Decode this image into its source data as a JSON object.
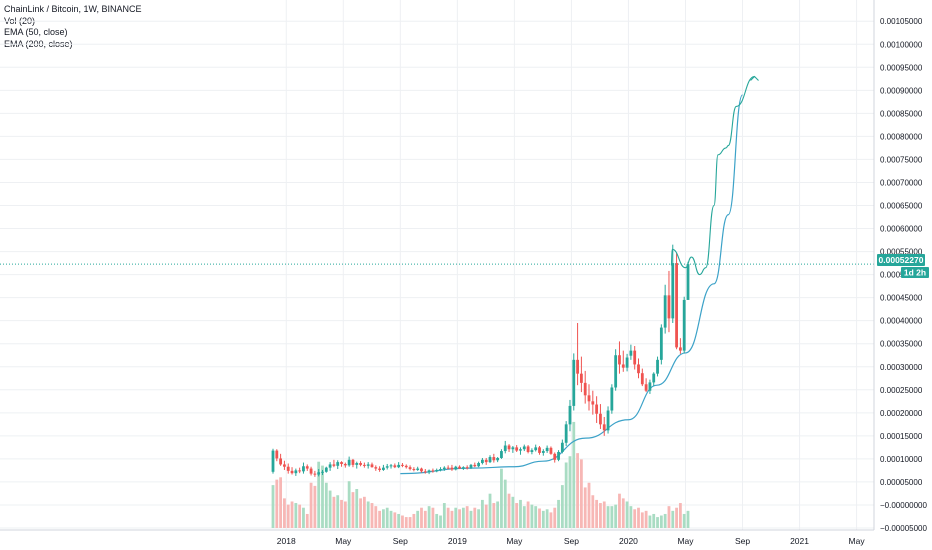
{
  "legend": {
    "title": "ChainLink / Bitcoin, 1W, BINANCE",
    "vol": "Vol (20)",
    "ema50": "EMA (50, close)",
    "ema200": "EMA (200, close)"
  },
  "price_badge": {
    "value": "0.00052270",
    "countdown": "1d 2h"
  },
  "colors": {
    "up": "#26a69a",
    "down": "#ef5350",
    "vol_up": "#a9dcc3",
    "vol_down": "#f7b7b5",
    "ema": "#3ca2c8",
    "projection": "#26a69a",
    "grid": "#eef0f3",
    "badge": "#26a69a"
  },
  "chart_data": {
    "type": "candlestick",
    "symbol": "ChainLink / Bitcoin, 1W, BINANCE",
    "x_axis": {
      "ticks": [
        "2018",
        "May",
        "Sep",
        "2019",
        "May",
        "Sep",
        "2020",
        "May",
        "Sep",
        "2021",
        "May"
      ],
      "range": [
        "2017-10",
        "2021-07"
      ]
    },
    "y_axis": {
      "ticks": [
        "−0.00005000",
        "−0.00000000",
        "0.00005000",
        "0.00010000",
        "0.00015000",
        "0.00020000",
        "0.00025000",
        "0.00030000",
        "0.00035000",
        "0.00040000",
        "0.00045000",
        "0.00050000",
        "0.00055000",
        "0.00060000",
        "0.00065000",
        "0.00070000",
        "0.00075000",
        "0.00080000",
        "0.00085000",
        "0.00090000",
        "0.00095000",
        "0.00100000",
        "0.00105000"
      ],
      "range": [
        -5e-05,
        0.00107
      ]
    },
    "last_price": 0.0005227,
    "ohlc_weekly": [
      [
        7.2e-05,
        0.000122,
        6.8e-05,
        0.000118
      ],
      [
        0.000118,
        0.000121,
        9.5e-05,
        0.000101
      ],
      [
        0.000101,
        0.000111,
        8.5e-05,
        8.8e-05
      ],
      [
        8.8e-05,
        9.6e-05,
        7.6e-05,
        8.3e-05
      ],
      [
        8.3e-05,
        9e-05,
        6.8e-05,
        7.4e-05
      ],
      [
        7.4e-05,
        8.2e-05,
        6.6e-05,
        6.9e-05
      ],
      [
        6.9e-05,
        7.9e-05,
        6.3e-05,
        7.5e-05
      ],
      [
        7.5e-05,
        8.1e-05,
        6.9e-05,
        7.3e-05
      ],
      [
        7.3e-05,
        9.2e-05,
        6.8e-05,
        8.4e-05
      ],
      [
        8.4e-05,
        8.8e-05,
        7.4e-05,
        7.9e-05
      ],
      [
        7.9e-05,
        8.3e-05,
        6.4e-05,
        6.8e-05
      ],
      [
        6.8e-05,
        7.4e-05,
        6.1e-05,
        6.6e-05
      ],
      [
        6.6e-05,
        7.8e-05,
        6.2e-05,
        7.1e-05
      ],
      [
        7.1e-05,
        7.6e-05,
        6.5e-05,
        7.2e-05
      ],
      [
        7.2e-05,
        8.3e-05,
        7e-05,
        8.1e-05
      ],
      [
        8.1e-05,
        9.3e-05,
        7.4e-05,
        8.8e-05
      ],
      [
        8.8e-05,
        9.8e-05,
        8.2e-05,
        8.5e-05
      ],
      [
        8.5e-05,
        9.7e-05,
        7.8e-05,
        9.3e-05
      ],
      [
        9.3e-05,
        9.5e-05,
        8.3e-05,
        8.9e-05
      ],
      [
        8.9e-05,
        9.2e-05,
        8.1e-05,
        8.6e-05
      ],
      [
        8.6e-05,
        0.000105,
        8.3e-05,
        9.8e-05
      ],
      [
        9.8e-05,
        0.0001,
        8.2e-05,
        8.7e-05
      ],
      [
        8.7e-05,
        9.4e-05,
        7.9e-05,
        9.1e-05
      ],
      [
        9.1e-05,
        9.5e-05,
        8.4e-05,
        8.7e-05
      ],
      [
        8.7e-05,
        9.2e-05,
        8.1e-05,
        8.5e-05
      ],
      [
        8.5e-05,
        9.3e-05,
        7.9e-05,
        8.8e-05
      ],
      [
        8.8e-05,
        9.2e-05,
        8.1e-05,
        8.2e-05
      ],
      [
        8.2e-05,
        8.6e-05,
        7.4e-05,
        7.9e-05
      ],
      [
        7.9e-05,
        8.4e-05,
        7.2e-05,
        7.6e-05
      ],
      [
        7.6e-05,
        8.7e-05,
        7.4e-05,
        8.1e-05
      ],
      [
        8.1e-05,
        8.9e-05,
        7.7e-05,
        8.4e-05
      ],
      [
        8.4e-05,
        8.9e-05,
        7.9e-05,
        8.6e-05
      ],
      [
        8.6e-05,
        9e-05,
        8e-05,
        8.2e-05
      ],
      [
        8.2e-05,
        9.3e-05,
        8e-05,
        8.7e-05
      ],
      [
        8.7e-05,
        9.1e-05,
        8.2e-05,
        8.5e-05
      ],
      [
        8.5e-05,
        8.8e-05,
        7.9e-05,
        8.2e-05
      ],
      [
        8.2e-05,
        8.6e-05,
        7.5e-05,
        7.8e-05
      ],
      [
        7.8e-05,
        8.2e-05,
        7.3e-05,
        7.6e-05
      ],
      [
        7.6e-05,
        8.3e-05,
        7.4e-05,
        7.9e-05
      ],
      [
        7.9e-05,
        8.1e-05,
        7e-05,
        7.3e-05
      ],
      [
        7.3e-05,
        7.8e-05,
        6.8e-05,
        7.1e-05
      ],
      [
        7.1e-05,
        7.7e-05,
        6.7e-05,
        7.5e-05
      ],
      [
        7.5e-05,
        7.9e-05,
        7e-05,
        7.3e-05
      ],
      [
        7.3e-05,
        7.9e-05,
        7.1e-05,
        7.6e-05
      ],
      [
        7.6e-05,
        8.2e-05,
        7.3e-05,
        7.8e-05
      ],
      [
        7.8e-05,
        8.4e-05,
        7.4e-05,
        8.1e-05
      ],
      [
        8.1e-05,
        8.6e-05,
        7.7e-05,
        8e-05
      ],
      [
        8.1e-05,
        8.7e-05,
        7.4e-05,
        7.7e-05
      ],
      [
        7.7e-05,
        8.5e-05,
        7.5e-05,
        8.3e-05
      ],
      [
        8.3e-05,
        8.6e-05,
        7.8e-05,
        7.9e-05
      ],
      [
        7.9e-05,
        8.4e-05,
        7.6e-05,
        8.2e-05
      ],
      [
        8.2e-05,
        8.6e-05,
        7.7e-05,
        8.1e-05
      ],
      [
        8.1e-05,
        8.9e-05,
        7.8e-05,
        8.7e-05
      ],
      [
        8.7e-05,
        9.2e-05,
        8.2e-05,
        8.4e-05
      ],
      [
        8.4e-05,
        9.4e-05,
        8.2e-05,
        9.1e-05
      ],
      [
        9.1e-05,
        0.000102,
        8.8e-05,
        9.8e-05
      ],
      [
        9.8e-05,
        0.000102,
        8.7e-05,
        9.3e-05
      ],
      [
        9.3e-05,
        0.000108,
        9.1e-05,
        0.000104
      ],
      [
        0.000104,
        0.000111,
        9.2e-05,
        9.7e-05
      ],
      [
        9.7e-05,
        0.000104,
        9.3e-05,
        0.000102
      ],
      [
        0.000102,
        0.000121,
        0.0001,
        0.000117
      ],
      [
        0.000117,
        0.000139,
        0.000112,
        0.000129
      ],
      [
        0.000129,
        0.000132,
        0.000115,
        0.000121
      ],
      [
        0.000121,
        0.000128,
        0.000113,
        0.000125
      ],
      [
        0.000125,
        0.00013,
        0.000115,
        0.000118
      ],
      [
        0.000118,
        0.000125,
        0.000109,
        0.000121
      ],
      [
        0.000121,
        0.000131,
        0.000117,
        0.000127
      ],
      [
        0.000127,
        0.00013,
        0.000112,
        0.000115
      ],
      [
        0.000115,
        0.000123,
        0.00011,
        0.000119
      ],
      [
        0.000119,
        0.000131,
        0.000116,
        0.000125
      ],
      [
        0.000125,
        0.000128,
        0.000109,
        0.000113
      ],
      [
        0.000113,
        0.000121,
        0.000107,
        0.000117
      ],
      [
        0.000117,
        0.000129,
        0.000113,
        0.000124
      ],
      [
        0.000124,
        0.000127,
        0.000109,
        0.000111
      ],
      [
        0.000111,
        0.000114,
        9.2e-05,
        9.8e-05
      ],
      [
        9.8e-05,
        0.000119,
        9.5e-05,
        0.000115
      ],
      [
        0.000115,
        0.000142,
        0.000112,
        0.000135
      ],
      [
        0.000135,
        0.000182,
        0.000128,
        0.000175
      ],
      [
        0.000175,
        0.000228,
        0.00016,
        0.000215
      ],
      [
        0.000215,
        0.000329,
        0.000205,
        0.000315
      ],
      [
        0.000315,
        0.000395,
        0.00026,
        0.000285
      ],
      [
        0.000285,
        0.000322,
        0.000245,
        0.000265
      ],
      [
        0.000265,
        0.000291,
        0.00022,
        0.000238
      ],
      [
        0.000238,
        0.000262,
        0.000205,
        0.000225
      ],
      [
        0.000225,
        0.000248,
        0.000196,
        0.000218
      ],
      [
        0.000218,
        0.000236,
        0.000178,
        0.000198
      ],
      [
        0.000198,
        0.000219,
        0.000165,
        0.000175
      ],
      [
        0.000175,
        0.000191,
        0.00015,
        0.000162
      ],
      [
        0.000162,
        0.000214,
        0.000155,
        0.000205
      ],
      [
        0.000205,
        0.000262,
        0.000198,
        0.000255
      ],
      [
        0.000255,
        0.000338,
        0.000248,
        0.000325
      ],
      [
        0.000325,
        0.000355,
        0.000285,
        0.000305
      ],
      [
        0.000305,
        0.000335,
        0.000289,
        0.000298
      ],
      [
        0.000298,
        0.000328,
        0.00029,
        0.00032
      ],
      [
        0.000324,
        0.000348,
        0.000315,
        0.000335
      ],
      [
        0.000335,
        0.000345,
        0.000294,
        0.000305
      ],
      [
        0.000305,
        0.000318,
        0.000275,
        0.000286
      ],
      [
        0.000286,
        0.000296,
        0.000258,
        0.000262
      ],
      [
        0.000262,
        0.000275,
        0.000245,
        0.000248
      ],
      [
        0.000248,
        0.000272,
        0.000241,
        0.000266
      ],
      [
        0.000266,
        0.000288,
        0.000258,
        0.000285
      ],
      [
        0.000285,
        0.000322,
        0.000279,
        0.000315
      ],
      [
        0.000315,
        0.000392,
        0.000305,
        0.000385
      ],
      [
        0.000385,
        0.000478,
        0.000372,
        0.000455
      ],
      [
        0.000455,
        0.000508,
        0.000375,
        0.000405
      ],
      [
        0.000405,
        0.000565,
        0.000395,
        0.000525
      ],
      [
        0.000525,
        0.000548,
        0.000338,
        0.000342
      ],
      [
        0.000342,
        0.000362,
        0.000328,
        0.000335
      ],
      [
        0.000335,
        0.000452,
        0.000329,
        0.000445
      ],
      [
        0.000445,
        0.000528,
        0.000455,
        0.0005227
      ]
    ],
    "volume_weekly": [
      55,
      62,
      65,
      38,
      30,
      34,
      32,
      30,
      26,
      18,
      58,
      54,
      85,
      80,
      58,
      48,
      40,
      42,
      36,
      34,
      60,
      46,
      50,
      38,
      40,
      34,
      32,
      28,
      22,
      24,
      26,
      22,
      20,
      18,
      16,
      14,
      14,
      18,
      22,
      26,
      22,
      28,
      26,
      18,
      16,
      32,
      26,
      22,
      26,
      24,
      26,
      28,
      22,
      26,
      24,
      36,
      30,
      44,
      32,
      34,
      76,
      62,
      44,
      40,
      32,
      36,
      28,
      34,
      30,
      28,
      25,
      22,
      24,
      20,
      26,
      36,
      55,
      84,
      92,
      136,
      96,
      88,
      52,
      58,
      42,
      36,
      32,
      34,
      28,
      28,
      30,
      44,
      38,
      34,
      28,
      24,
      26,
      20,
      22,
      16,
      18,
      14,
      16,
      18,
      28,
      22,
      26,
      32,
      18,
      22
    ],
    "ema200_key_points": [
      [
        6.8e-05,
        "2018-09"
      ],
      [
        8e-05,
        "2019-02"
      ],
      [
        8.3e-05,
        "2019-05"
      ],
      [
        9.5e-05,
        "2019-07"
      ],
      [
        0.000145,
        "2019-10"
      ],
      [
        0.000185,
        "2020-01"
      ],
      [
        0.00026,
        "2020-03"
      ],
      [
        0.00033,
        "2020-05"
      ],
      [
        0.00048,
        "2020-07"
      ],
      [
        0.00063,
        "2020-08"
      ],
      [
        0.00089,
        "2020-09"
      ]
    ],
    "projection_path": [
      [
        0.00052,
        "2020-04"
      ],
      [
        0.000555,
        "2020-04"
      ],
      [
        0.000515,
        "2020-05"
      ],
      [
        0.000538,
        "2020-05"
      ],
      [
        0.0005,
        "2020-06"
      ],
      [
        0.000515,
        "2020-06"
      ],
      [
        0.00065,
        "2020-07"
      ],
      [
        0.00076,
        "2020-07"
      ],
      [
        0.000775,
        "2020-07"
      ],
      [
        0.00078,
        "2020-08"
      ],
      [
        0.000865,
        "2020-08"
      ],
      [
        0.00093,
        "2020-09"
      ]
    ]
  }
}
